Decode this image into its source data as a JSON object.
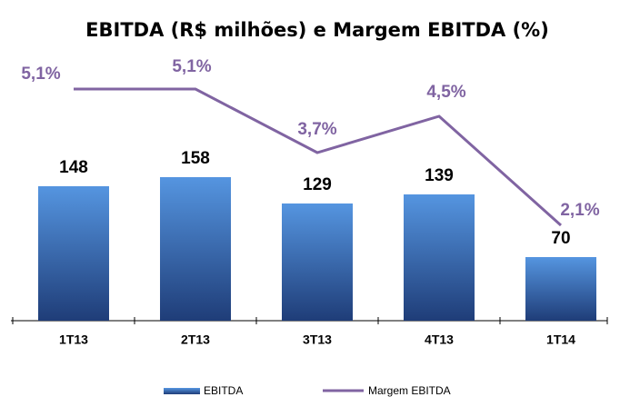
{
  "chart_data": {
    "type": "bar",
    "title": "EBITDA (R$ milhões) e Margem EBITDA (%)",
    "categories": [
      "1T13",
      "2T13",
      "3T13",
      "4T13",
      "1T14"
    ],
    "ylim": [
      0,
      300
    ],
    "y2lim": [
      0,
      6
    ],
    "legend": "bottom",
    "series": [
      {
        "name": "EBITDA",
        "type": "bar",
        "color": "#3a6fba",
        "values": [
          148,
          158,
          129,
          139,
          70
        ]
      },
      {
        "name": "Margem EBITDA",
        "type": "line",
        "axis": "y2",
        "color": "#8064a2",
        "values": [
          5.1,
          5.1,
          3.7,
          4.5,
          2.1
        ],
        "value_labels": [
          "5,1%",
          "5,1%",
          "3,7%",
          "4,5%",
          "2,1%"
        ]
      }
    ]
  }
}
